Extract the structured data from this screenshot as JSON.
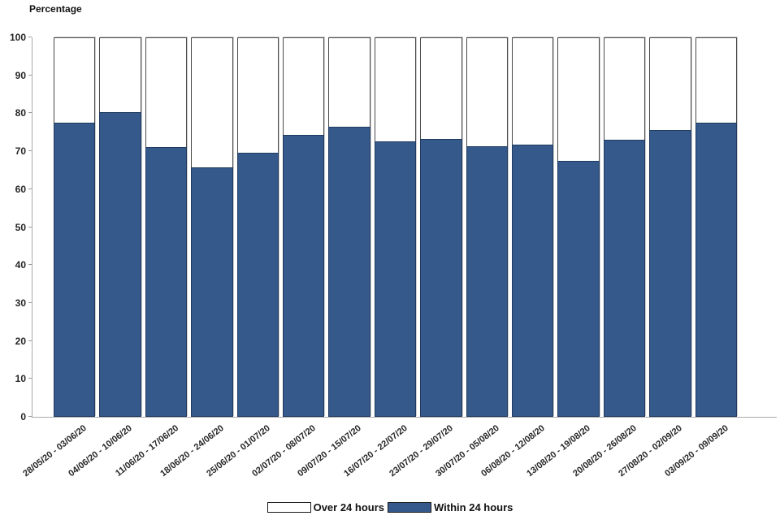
{
  "chart_data": {
    "type": "bar",
    "stacked": true,
    "ylabel": "Percentage",
    "xlabel": "",
    "ylim": [
      0,
      100
    ],
    "ytick_step": 10,
    "grid": false,
    "legend_position": "bottom",
    "categories": [
      "28/05/20 - 03/06/20",
      "04/06/20 - 10/06/20",
      "11/06/20 - 17/06/20",
      "18/06/20 - 24/06/20",
      "25/06/20 - 01/07/20",
      "02/07/20 - 08/07/20",
      "09/07/20 - 15/07/20",
      "16/07/20 - 22/07/20",
      "23/07/20 - 29/07/20",
      "30/07/20 - 05/08/20",
      "06/08/20 - 12/08/20",
      "13/08/20 - 19/08/20",
      "20/08/20 - 26/08/20",
      "27/08/20 - 02/09/20",
      "03/09/20 - 09/09/20"
    ],
    "series": [
      {
        "name": "Over 24 hours",
        "color": "#ffffff",
        "values": [
          22.4,
          19.6,
          29.0,
          34.2,
          30.4,
          25.6,
          23.5,
          27.5,
          26.7,
          28.6,
          28.3,
          32.6,
          26.9,
          24.5,
          22.4
        ]
      },
      {
        "name": "Within 24 hours",
        "color": "#36598b",
        "values": [
          77.6,
          80.4,
          71.0,
          65.8,
          69.6,
          74.4,
          76.5,
          72.5,
          73.3,
          71.4,
          71.7,
          67.4,
          73.1,
          75.5,
          77.6
        ]
      }
    ]
  }
}
